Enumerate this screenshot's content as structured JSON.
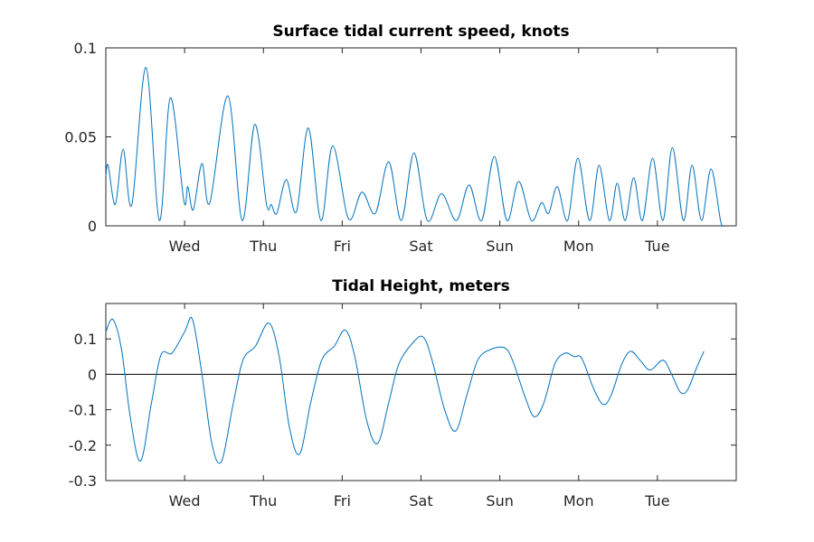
{
  "chart_data": [
    {
      "type": "line",
      "title": "Surface tidal current speed, knots",
      "xlabel": "",
      "ylabel": "",
      "x_range_days": [
        0,
        8
      ],
      "ylim": [
        0,
        0.1
      ],
      "yticks": [
        0,
        0.05,
        0.1
      ],
      "ytick_labels": [
        "0",
        "0.05",
        "0.1"
      ],
      "xtick_positions_days": [
        1,
        2,
        3,
        4,
        5,
        6,
        7
      ],
      "xtick_labels": [
        "Wed",
        "Thu",
        "Fri",
        "Sat",
        "Sun",
        "Mon",
        "Tue"
      ],
      "grid": false,
      "series": [
        {
          "color": "#0072BD",
          "points": [
            [
              0.0,
              0.028
            ],
            [
              0.03,
              0.034
            ],
            [
              0.12,
              0.012
            ],
            [
              0.22,
              0.043
            ],
            [
              0.33,
              0.012
            ],
            [
              0.51,
              0.089
            ],
            [
              0.68,
              0.003
            ],
            [
              0.82,
              0.072
            ],
            [
              0.99,
              0.014
            ],
            [
              1.04,
              0.022
            ],
            [
              1.11,
              0.009
            ],
            [
              1.22,
              0.035
            ],
            [
              1.32,
              0.013
            ],
            [
              1.55,
              0.073
            ],
            [
              1.73,
              0.003
            ],
            [
              1.89,
              0.057
            ],
            [
              2.04,
              0.012
            ],
            [
              2.1,
              0.012
            ],
            [
              2.17,
              0.007
            ],
            [
              2.29,
              0.026
            ],
            [
              2.42,
              0.008
            ],
            [
              2.57,
              0.055
            ],
            [
              2.73,
              0.003
            ],
            [
              2.88,
              0.045
            ],
            [
              3.08,
              0.004
            ],
            [
              3.25,
              0.019
            ],
            [
              3.42,
              0.007
            ],
            [
              3.59,
              0.036
            ],
            [
              3.75,
              0.003
            ],
            [
              3.91,
              0.041
            ],
            [
              4.08,
              0.003
            ],
            [
              4.26,
              0.018
            ],
            [
              4.45,
              0.003
            ],
            [
              4.61,
              0.023
            ],
            [
              4.77,
              0.003
            ],
            [
              4.93,
              0.039
            ],
            [
              5.09,
              0.003
            ],
            [
              5.24,
              0.025
            ],
            [
              5.4,
              0.003
            ],
            [
              5.53,
              0.013
            ],
            [
              5.62,
              0.007
            ],
            [
              5.73,
              0.022
            ],
            [
              5.86,
              0.003
            ],
            [
              5.99,
              0.038
            ],
            [
              6.14,
              0.003
            ],
            [
              6.26,
              0.034
            ],
            [
              6.39,
              0.003
            ],
            [
              6.49,
              0.024
            ],
            [
              6.59,
              0.003
            ],
            [
              6.7,
              0.027
            ],
            [
              6.81,
              0.003
            ],
            [
              6.94,
              0.038
            ],
            [
              7.07,
              0.003
            ],
            [
              7.19,
              0.044
            ],
            [
              7.33,
              0.003
            ],
            [
              7.44,
              0.034
            ],
            [
              7.56,
              0.003
            ],
            [
              7.68,
              0.032
            ],
            [
              7.8,
              0.003
            ],
            [
              7.84,
              0.0
            ]
          ]
        }
      ]
    },
    {
      "type": "line",
      "title": "Tidal Height, meters",
      "xlabel": "",
      "ylabel": "",
      "x_range_days": [
        0,
        8
      ],
      "ylim": [
        -0.3,
        0.2
      ],
      "yticks": [
        -0.3,
        -0.2,
        -0.1,
        0,
        0.1
      ],
      "ytick_labels": [
        "-0.3",
        "-0.2",
        "-0.1",
        "0",
        "0.1"
      ],
      "xtick_positions_days": [
        1,
        2,
        3,
        4,
        5,
        6,
        7
      ],
      "xtick_labels": [
        "Wed",
        "Thu",
        "Fri",
        "Sat",
        "Sun",
        "Mon",
        "Tue"
      ],
      "grid": false,
      "zero_line": true,
      "series": [
        {
          "color": "#0072BD",
          "points": [
            [
              0.0,
              0.12
            ],
            [
              0.09,
              0.155
            ],
            [
              0.2,
              0.07
            ],
            [
              0.31,
              -0.12
            ],
            [
              0.44,
              -0.245
            ],
            [
              0.58,
              -0.08
            ],
            [
              0.7,
              0.055
            ],
            [
              0.84,
              0.06
            ],
            [
              1.0,
              0.12
            ],
            [
              1.1,
              0.155
            ],
            [
              1.22,
              0.0
            ],
            [
              1.35,
              -0.2
            ],
            [
              1.47,
              -0.245
            ],
            [
              1.61,
              -0.09
            ],
            [
              1.74,
              0.04
            ],
            [
              1.9,
              0.08
            ],
            [
              2.07,
              0.145
            ],
            [
              2.2,
              0.05
            ],
            [
              2.33,
              -0.15
            ],
            [
              2.46,
              -0.225
            ],
            [
              2.6,
              -0.08
            ],
            [
              2.74,
              0.04
            ],
            [
              2.9,
              0.08
            ],
            [
              3.04,
              0.125
            ],
            [
              3.16,
              0.05
            ],
            [
              3.31,
              -0.13
            ],
            [
              3.45,
              -0.195
            ],
            [
              3.59,
              -0.08
            ],
            [
              3.72,
              0.03
            ],
            [
              3.9,
              0.09
            ],
            [
              4.03,
              0.105
            ],
            [
              4.14,
              0.04
            ],
            [
              4.3,
              -0.1
            ],
            [
              4.44,
              -0.16
            ],
            [
              4.58,
              -0.06
            ],
            [
              4.72,
              0.04
            ],
            [
              4.88,
              0.07
            ],
            [
              5.06,
              0.075
            ],
            [
              5.16,
              0.04
            ],
            [
              5.33,
              -0.07
            ],
            [
              5.44,
              -0.12
            ],
            [
              5.56,
              -0.08
            ],
            [
              5.7,
              0.03
            ],
            [
              5.83,
              0.06
            ],
            [
              5.94,
              0.05
            ],
            [
              6.04,
              0.045
            ],
            [
              6.19,
              -0.04
            ],
            [
              6.31,
              -0.085
            ],
            [
              6.41,
              -0.06
            ],
            [
              6.55,
              0.03
            ],
            [
              6.66,
              0.065
            ],
            [
              6.78,
              0.04
            ],
            [
              6.91,
              0.012
            ],
            [
              7.07,
              0.04
            ],
            [
              7.18,
              0.0
            ],
            [
              7.29,
              -0.05
            ],
            [
              7.38,
              -0.045
            ],
            [
              7.5,
              0.02
            ],
            [
              7.59,
              0.065
            ]
          ]
        }
      ]
    }
  ]
}
